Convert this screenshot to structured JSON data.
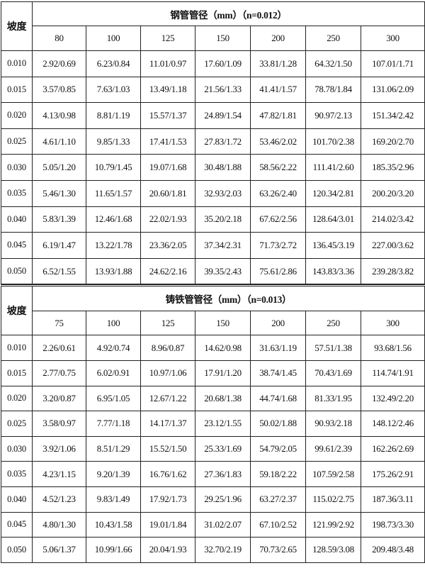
{
  "sections": [
    {
      "corner_label": "坡度",
      "title": "钢管管径（mm）（n=0.012）",
      "diameters": [
        "80",
        "100",
        "125",
        "150",
        "200",
        "250",
        "300"
      ],
      "rows": [
        {
          "slope": "0.010",
          "cells": [
            "2.92/0.69",
            "6.23/0.84",
            "11.01/0.97",
            "17.60/1.09",
            "33.81/1.28",
            "64.32/1.50",
            "107.01/1.71"
          ]
        },
        {
          "slope": "0.015",
          "cells": [
            "3.57/0.85",
            "7.63/1.03",
            "13.49/1.18",
            "21.56/1.33",
            "41.41/1.57",
            "78.78/1.84",
            "131.06/2.09"
          ]
        },
        {
          "slope": "0.020",
          "cells": [
            "4.13/0.98",
            "8.81/1.19",
            "15.57/1.37",
            "24.89/1.54",
            "47.82/1.81",
            "90.97/2.13",
            "151.34/2.42"
          ]
        },
        {
          "slope": "0.025",
          "cells": [
            "4.61/1.10",
            "9.85/1.33",
            "17.41/1.53",
            "27.83/1.72",
            "53.46/2.02",
            "101.70/2.38",
            "169.20/2.70"
          ]
        },
        {
          "slope": "0.030",
          "cells": [
            "5.05/1.20",
            "10.79/1.45",
            "19.07/1.68",
            "30.48/1.88",
            "58.56/2.22",
            "111.41/2.60",
            "185.35/2.96"
          ]
        },
        {
          "slope": "0.035",
          "cells": [
            "5.46/1.30",
            "11.65/1.57",
            "20.60/1.81",
            "32.93/2.03",
            "63.26/2.40",
            "120.34/2.81",
            "200.20/3.20"
          ]
        },
        {
          "slope": "0.040",
          "cells": [
            "5.83/1.39",
            "12.46/1.68",
            "22.02/1.93",
            "35.20/2.18",
            "67.62/2.56",
            "128.64/3.01",
            "214.02/3.42"
          ]
        },
        {
          "slope": "0.045",
          "cells": [
            "6.19/1.47",
            "13.22/1.78",
            "23.36/2.05",
            "37.34/2.31",
            "71.73/2.72",
            "136.45/3.19",
            "227.00/3.62"
          ]
        },
        {
          "slope": "0.050",
          "cells": [
            "6.52/1.55",
            "13.93/1.88",
            "24.62/2.16",
            "39.35/2.43",
            "75.61/2.86",
            "143.83/3.36",
            "239.28/3.82"
          ]
        }
      ]
    },
    {
      "corner_label": "坡度",
      "title": "铸铁管管径（mm）（n=0.013）",
      "diameters": [
        "75",
        "100",
        "125",
        "150",
        "200",
        "250",
        "300"
      ],
      "rows": [
        {
          "slope": "0.010",
          "cells": [
            "2.26/0.61",
            "4.92/0.74",
            "8.96/0.87",
            "14.62/0.98",
            "31.63/1.19",
            "57.51/1.38",
            "93.68/1.56"
          ]
        },
        {
          "slope": "0.015",
          "cells": [
            "2.77/0.75",
            "6.02/0.91",
            "10.97/1.06",
            "17.91/1.20",
            "38.74/1.45",
            "70.43/1.69",
            "114.74/1.91"
          ]
        },
        {
          "slope": "0.020",
          "cells": [
            "3.20/0.87",
            "6.95/1.05",
            "12.67/1.22",
            "20.68/1.38",
            "44.74/1.68",
            "81.33/1.95",
            "132.49/2.20"
          ]
        },
        {
          "slope": "0.025",
          "cells": [
            "3.58/0.97",
            "7.77/1.18",
            "14.17/1.37",
            "23.12/1.55",
            "50.02/1.88",
            "90.93/2.18",
            "148.12/2.46"
          ]
        },
        {
          "slope": "0.030",
          "cells": [
            "3.92/1.06",
            "8.51/1.29",
            "15.52/1.50",
            "25.33/1.69",
            "54.79/2.05",
            "99.61/2.39",
            "162.26/2.69"
          ]
        },
        {
          "slope": "0.035",
          "cells": [
            "4.23/1.15",
            "9.20/1.39",
            "16.76/1.62",
            "27.36/1.83",
            "59.18/2.22",
            "107.59/2.58",
            "175.26/2.91"
          ]
        },
        {
          "slope": "0.040",
          "cells": [
            "4.52/1.23",
            "9.83/1.49",
            "17.92/1.73",
            "29.25/1.96",
            "63.27/2.37",
            "115.02/2.75",
            "187.36/3.11"
          ]
        },
        {
          "slope": "0.045",
          "cells": [
            "4.80/1.30",
            "10.43/1.58",
            "19.01/1.84",
            "31.02/2.07",
            "67.10/2.52",
            "121.99/2.92",
            "198.73/3.30"
          ]
        },
        {
          "slope": "0.050",
          "cells": [
            "5.06/1.37",
            "10.99/1.66",
            "20.04/1.93",
            "32.70/2.19",
            "70.73/2.65",
            "128.59/3.08",
            "209.48/3.48"
          ]
        }
      ]
    }
  ]
}
